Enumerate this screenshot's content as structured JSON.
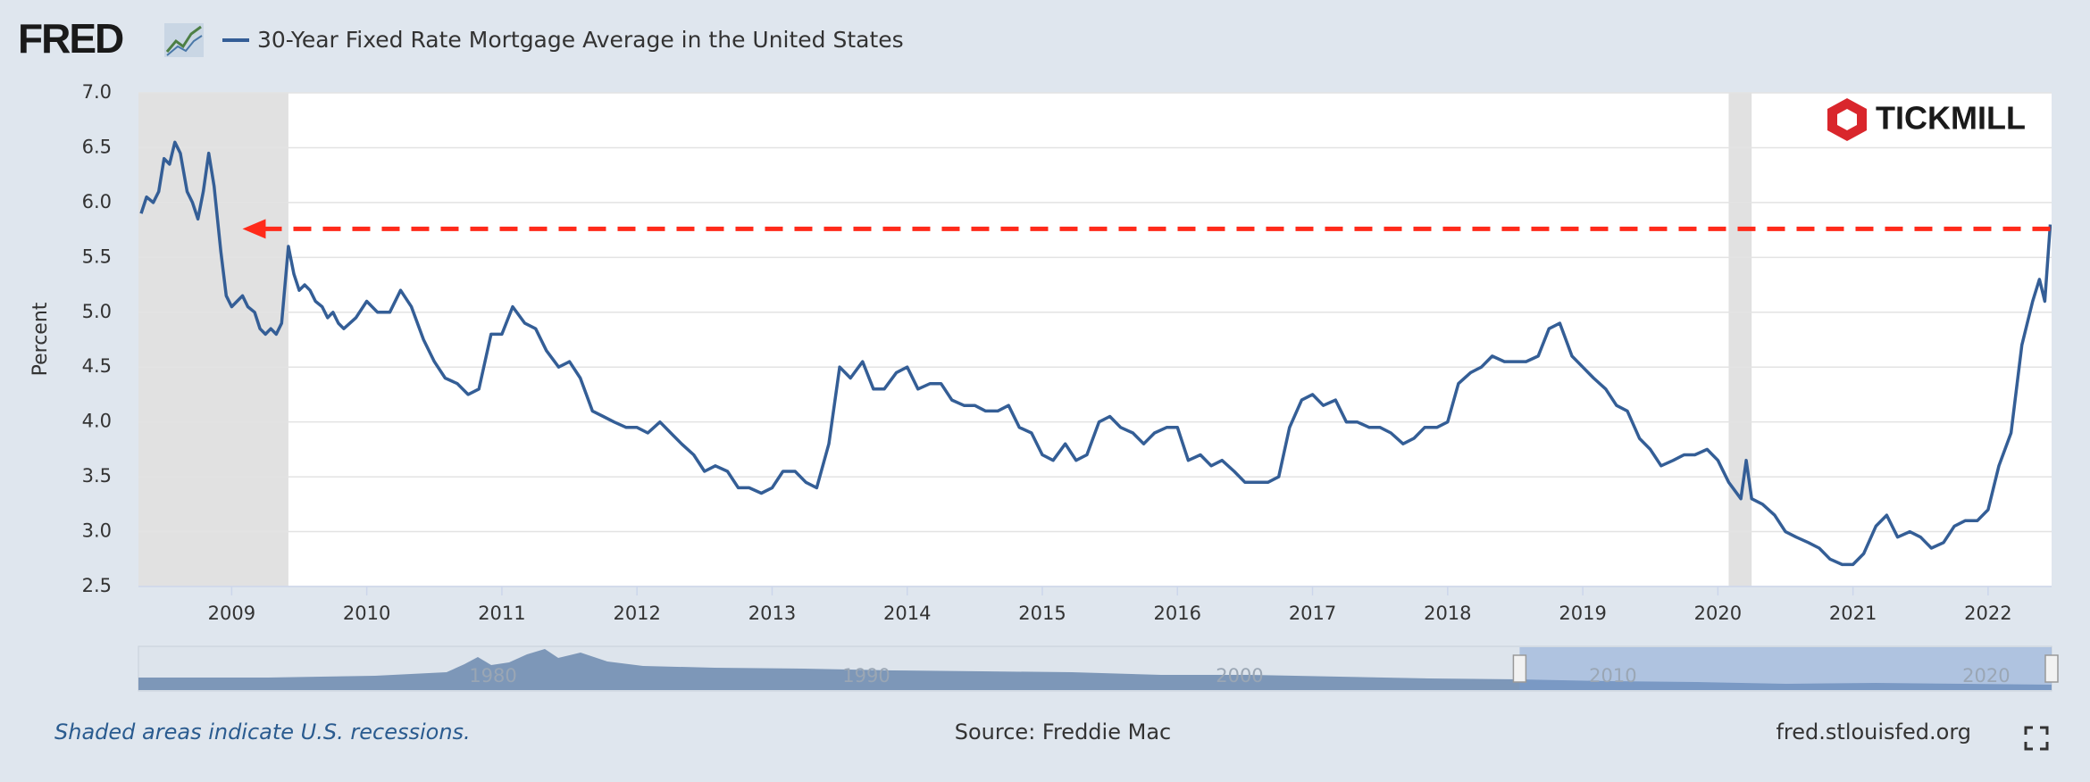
{
  "header": {
    "logo": "FRED",
    "brand": "TICKMILL"
  },
  "footer": {
    "note": "Shaded areas indicate U.S. recessions.",
    "source": "Source: Freddie Mac",
    "site": "fred.stlouisfed.org"
  },
  "chart_data": {
    "type": "line",
    "ylabel": "Percent",
    "xlim": [
      2008.31,
      2022.47
    ],
    "xticks": [
      2009,
      2010,
      2011,
      2012,
      2013,
      2014,
      2015,
      2016,
      2017,
      2018,
      2019,
      2020,
      2021,
      2022
    ],
    "ylim": [
      2.5,
      7.0
    ],
    "yticks": [
      2.5,
      {
        "value": 3,
        "label": "3.0"
      },
      3.5,
      {
        "value": 4,
        "label": "4.0"
      },
      4.5,
      {
        "value": 5,
        "label": "5.0"
      },
      5.5,
      {
        "value": 6,
        "label": "6.0"
      },
      6.5,
      {
        "value": 7,
        "label": "7.0"
      }
    ],
    "grid": true,
    "recessions": [
      [
        2008.31,
        2009.42
      ],
      [
        2020.08,
        2020.25
      ]
    ],
    "reference_line": {
      "value": 5.76,
      "x_start": 2009.08,
      "color": "#ff2a1a"
    },
    "x": [
      2008.33,
      2008.37,
      2008.42,
      2008.46,
      2008.5,
      2008.54,
      2008.58,
      2008.62,
      2008.67,
      2008.71,
      2008.75,
      2008.79,
      2008.83,
      2008.87,
      2008.92,
      2008.96,
      2009.0,
      2009.04,
      2009.08,
      2009.12,
      2009.17,
      2009.21,
      2009.25,
      2009.29,
      2009.33,
      2009.37,
      2009.42,
      2009.46,
      2009.5,
      2009.54,
      2009.58,
      2009.62,
      2009.67,
      2009.71,
      2009.75,
      2009.79,
      2009.83,
      2009.92,
      2010.0,
      2010.08,
      2010.17,
      2010.25,
      2010.33,
      2010.42,
      2010.5,
      2010.58,
      2010.67,
      2010.75,
      2010.83,
      2010.92,
      2011.0,
      2011.08,
      2011.17,
      2011.25,
      2011.33,
      2011.42,
      2011.5,
      2011.58,
      2011.67,
      2011.75,
      2011.83,
      2011.92,
      2012.0,
      2012.08,
      2012.17,
      2012.25,
      2012.33,
      2012.42,
      2012.5,
      2012.58,
      2012.67,
      2012.75,
      2012.83,
      2012.92,
      2013.0,
      2013.08,
      2013.17,
      2013.25,
      2013.33,
      2013.42,
      2013.5,
      2013.58,
      2013.67,
      2013.75,
      2013.83,
      2013.92,
      2014.0,
      2014.08,
      2014.17,
      2014.25,
      2014.33,
      2014.42,
      2014.5,
      2014.58,
      2014.67,
      2014.75,
      2014.83,
      2014.92,
      2015.0,
      2015.08,
      2015.17,
      2015.25,
      2015.33,
      2015.42,
      2015.5,
      2015.58,
      2015.67,
      2015.75,
      2015.83,
      2015.92,
      2016.0,
      2016.08,
      2016.17,
      2016.25,
      2016.33,
      2016.42,
      2016.5,
      2016.58,
      2016.67,
      2016.75,
      2016.83,
      2016.92,
      2017.0,
      2017.08,
      2017.17,
      2017.25,
      2017.33,
      2017.42,
      2017.5,
      2017.58,
      2017.67,
      2017.75,
      2017.83,
      2017.92,
      2018.0,
      2018.08,
      2018.17,
      2018.25,
      2018.33,
      2018.42,
      2018.5,
      2018.58,
      2018.67,
      2018.75,
      2018.83,
      2018.92,
      2019.0,
      2019.08,
      2019.17,
      2019.25,
      2019.33,
      2019.42,
      2019.5,
      2019.58,
      2019.67,
      2019.75,
      2019.83,
      2019.92,
      2020.0,
      2020.08,
      2020.17,
      2020.21,
      2020.25,
      2020.33,
      2020.42,
      2020.5,
      2020.58,
      2020.67,
      2020.75,
      2020.83,
      2020.92,
      2021.0,
      2021.08,
      2021.17,
      2021.25,
      2021.33,
      2021.42,
      2021.5,
      2021.58,
      2021.67,
      2021.75,
      2021.83,
      2021.92,
      2022.0,
      2022.08,
      2022.17,
      2022.25,
      2022.33,
      2022.38,
      2022.42,
      2022.46
    ],
    "series": [
      {
        "name": "30-Year Fixed Rate Mortgage Average in the United States",
        "color": "#345e96",
        "values": [
          5.9,
          6.05,
          6.0,
          6.1,
          6.4,
          6.35,
          6.55,
          6.45,
          6.1,
          6.0,
          5.85,
          6.1,
          6.45,
          6.15,
          5.55,
          5.15,
          5.05,
          5.1,
          5.15,
          5.05,
          5.0,
          4.85,
          4.8,
          4.85,
          4.8,
          4.9,
          5.6,
          5.35,
          5.2,
          5.25,
          5.2,
          5.1,
          5.05,
          4.95,
          5.0,
          4.9,
          4.85,
          4.95,
          5.1,
          5.0,
          5.0,
          5.2,
          5.05,
          4.75,
          4.55,
          4.4,
          4.35,
          4.25,
          4.3,
          4.8,
          4.8,
          5.05,
          4.9,
          4.85,
          4.65,
          4.5,
          4.55,
          4.4,
          4.1,
          4.05,
          4.0,
          3.95,
          3.95,
          3.9,
          4.0,
          3.9,
          3.8,
          3.7,
          3.55,
          3.6,
          3.55,
          3.4,
          3.4,
          3.35,
          3.4,
          3.55,
          3.55,
          3.45,
          3.4,
          3.8,
          4.5,
          4.4,
          4.55,
          4.3,
          4.3,
          4.45,
          4.5,
          4.3,
          4.35,
          4.35,
          4.2,
          4.15,
          4.15,
          4.1,
          4.1,
          4.15,
          3.95,
          3.9,
          3.7,
          3.65,
          3.8,
          3.65,
          3.7,
          4.0,
          4.05,
          3.95,
          3.9,
          3.8,
          3.9,
          3.95,
          3.95,
          3.65,
          3.7,
          3.6,
          3.65,
          3.55,
          3.45,
          3.45,
          3.45,
          3.5,
          3.95,
          4.2,
          4.25,
          4.15,
          4.2,
          4.0,
          4.0,
          3.95,
          3.95,
          3.9,
          3.8,
          3.85,
          3.95,
          3.95,
          4.0,
          4.35,
          4.45,
          4.5,
          4.6,
          4.55,
          4.55,
          4.55,
          4.6,
          4.85,
          4.9,
          4.6,
          4.5,
          4.4,
          4.3,
          4.15,
          4.1,
          3.85,
          3.75,
          3.6,
          3.65,
          3.7,
          3.7,
          3.75,
          3.65,
          3.45,
          3.3,
          3.65,
          3.3,
          3.25,
          3.15,
          3.0,
          2.95,
          2.9,
          2.85,
          2.75,
          2.7,
          2.7,
          2.8,
          3.05,
          3.15,
          2.95,
          3.0,
          2.95,
          2.85,
          2.9,
          3.05,
          3.1,
          3.1,
          3.2,
          3.6,
          3.9,
          4.7,
          5.1,
          5.3,
          5.1,
          5.8
        ]
      }
    ],
    "navigator": {
      "xlim": [
        1970.5,
        2021.75
      ],
      "xticks": [
        1980,
        1990,
        2000,
        2010,
        2020
      ],
      "selection": [
        2007.5,
        2021.75
      ]
    }
  }
}
